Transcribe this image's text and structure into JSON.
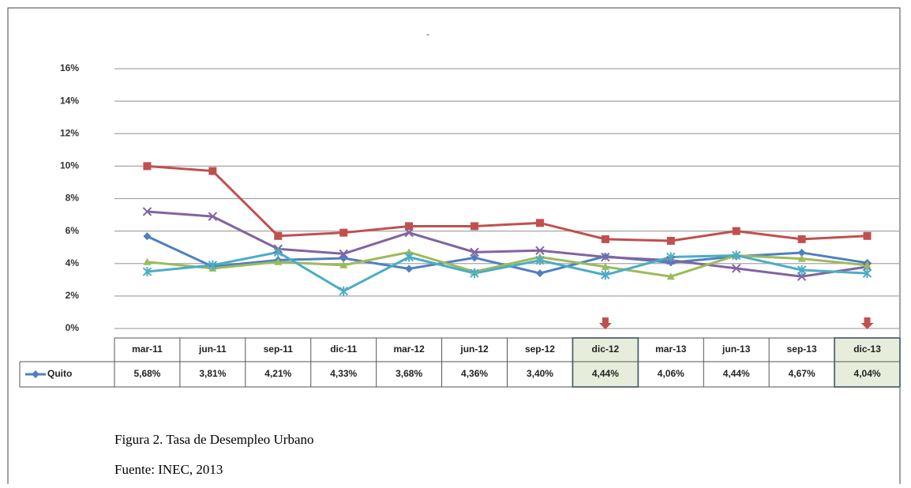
{
  "chart_data": {
    "type": "line",
    "categories": [
      "mar-11",
      "jun-11",
      "sep-11",
      "dic-11",
      "mar-12",
      "jun-12",
      "sep-12",
      "dic-12",
      "mar-13",
      "jun-13",
      "sep-13",
      "dic-13"
    ],
    "series": [
      {
        "name": "Quito",
        "color": "#4f7fc2",
        "marker": "diamond",
        "values": [
          5.68,
          3.81,
          4.21,
          4.33,
          3.68,
          4.36,
          3.4,
          4.44,
          4.06,
          4.44,
          4.67,
          4.04
        ],
        "value_labels": [
          "5,68%",
          "3,81%",
          "4,21%",
          "4,33%",
          "3,68%",
          "4,36%",
          "3,40%",
          "4,44%",
          "4,06%",
          "4,44%",
          "4,67%",
          "4,04%"
        ]
      },
      {
        "color": "#c0504d",
        "marker": "square",
        "values": [
          10,
          9.7,
          5.7,
          5.9,
          6.3,
          6.3,
          6.5,
          5.5,
          5.4,
          6.0,
          5.5,
          5.7
        ]
      },
      {
        "color": "#8064a2",
        "marker": "x",
        "values": [
          7.2,
          6.9,
          4.9,
          4.6,
          5.9,
          4.7,
          4.8,
          4.4,
          4.2,
          3.7,
          3.2,
          3.8
        ]
      },
      {
        "color": "#9bbb59",
        "marker": "triangle",
        "values": [
          4.1,
          3.7,
          4.1,
          3.9,
          4.7,
          3.5,
          4.4,
          3.8,
          3.2,
          4.5,
          4.3,
          3.9
        ]
      },
      {
        "color": "#4bacc6",
        "marker": "star",
        "values": [
          3.5,
          3.9,
          4.7,
          2.3,
          4.4,
          3.4,
          4.2,
          3.3,
          4.4,
          4.5,
          3.6,
          3.4
        ]
      }
    ],
    "ylim": [
      0,
      16
    ],
    "yticks": [
      {
        "value": 0,
        "label": "0%"
      },
      {
        "value": 2,
        "label": "2%"
      },
      {
        "value": 4,
        "label": "4%"
      },
      {
        "value": 6,
        "label": "6%"
      },
      {
        "value": 8,
        "label": "8%"
      },
      {
        "value": 10,
        "label": "10%"
      },
      {
        "value": 12,
        "label": "12%"
      },
      {
        "value": 14,
        "label": "14%"
      },
      {
        "value": 16,
        "label": "16%"
      }
    ],
    "grid": true,
    "highlight_indices": [
      7,
      11
    ]
  },
  "figure": {
    "caption": "Figura 2. Tasa de Desempleo Urbano",
    "source": "Fuente: INEC, 2013"
  }
}
